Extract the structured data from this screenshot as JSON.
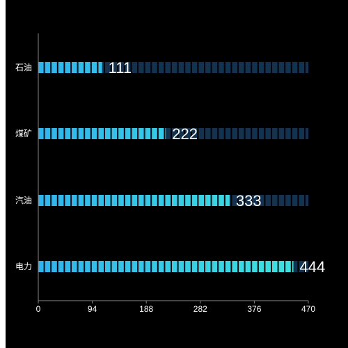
{
  "chart_data": {
    "type": "bar",
    "orientation": "horizontal",
    "style": "pictorial-segmented",
    "categories": [
      "石油",
      "煤矿",
      "汽油",
      "电力"
    ],
    "values": [
      111,
      222,
      333,
      444
    ],
    "xlim": [
      0,
      470
    ],
    "x_ticks": [
      "0",
      "94",
      "188",
      "282",
      "376",
      "470"
    ],
    "title": "",
    "xlabel": "",
    "ylabel": "",
    "grid": false,
    "legend": "none",
    "colors": {
      "background": "#000000",
      "bar_gradient_start": "#2fb4ee",
      "bar_gradient_end": "#3ce6de",
      "track": "#133250",
      "axis": "#888888",
      "text": "#ffffff"
    }
  }
}
